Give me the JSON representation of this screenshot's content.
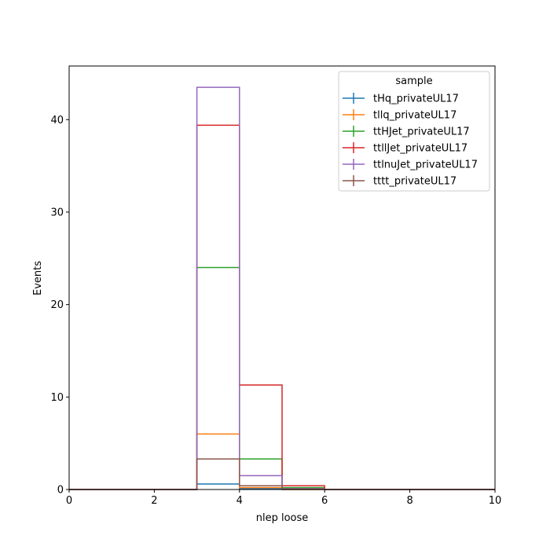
{
  "chart_data": {
    "type": "histogram-step",
    "xlabel": "nlep loose",
    "ylabel": "Events",
    "xlim": [
      0,
      10
    ],
    "ylim": [
      0,
      45.8
    ],
    "xticks": [
      0,
      2,
      4,
      6,
      8,
      10
    ],
    "yticks": [
      0,
      10,
      20,
      30,
      40
    ],
    "bin_edges": [
      0,
      1,
      2,
      3,
      4,
      5,
      6,
      7,
      8,
      9,
      10
    ],
    "legend": {
      "title": "sample",
      "location": "top-right"
    },
    "series": [
      {
        "name": "tHq_privateUL17",
        "color": "#1f77b4",
        "values": [
          0,
          0,
          0,
          0.6,
          0.1,
          0.0,
          0,
          0,
          0,
          0
        ]
      },
      {
        "name": "tllq_privateUL17",
        "color": "#ff7f0e",
        "values": [
          0,
          0,
          0,
          6.0,
          0.2,
          0.0,
          0,
          0,
          0,
          0
        ]
      },
      {
        "name": "ttHJet_privateUL17",
        "color": "#2ca02c",
        "values": [
          0,
          0,
          0,
          24.0,
          3.3,
          0.2,
          0,
          0,
          0,
          0
        ]
      },
      {
        "name": "ttllJet_privateUL17",
        "color": "#d62728",
        "values": [
          0,
          0,
          0,
          39.4,
          11.3,
          0.4,
          0,
          0,
          0,
          0
        ]
      },
      {
        "name": "ttlnuJet_privateUL17",
        "color": "#9467bd",
        "values": [
          0,
          0,
          0,
          43.5,
          1.5,
          0.1,
          0,
          0,
          0,
          0
        ]
      },
      {
        "name": "tttt_privateUL17",
        "color": "#8c564b",
        "values": [
          0,
          0,
          0,
          3.3,
          0.4,
          0.05,
          0,
          0,
          0,
          0
        ]
      }
    ]
  }
}
